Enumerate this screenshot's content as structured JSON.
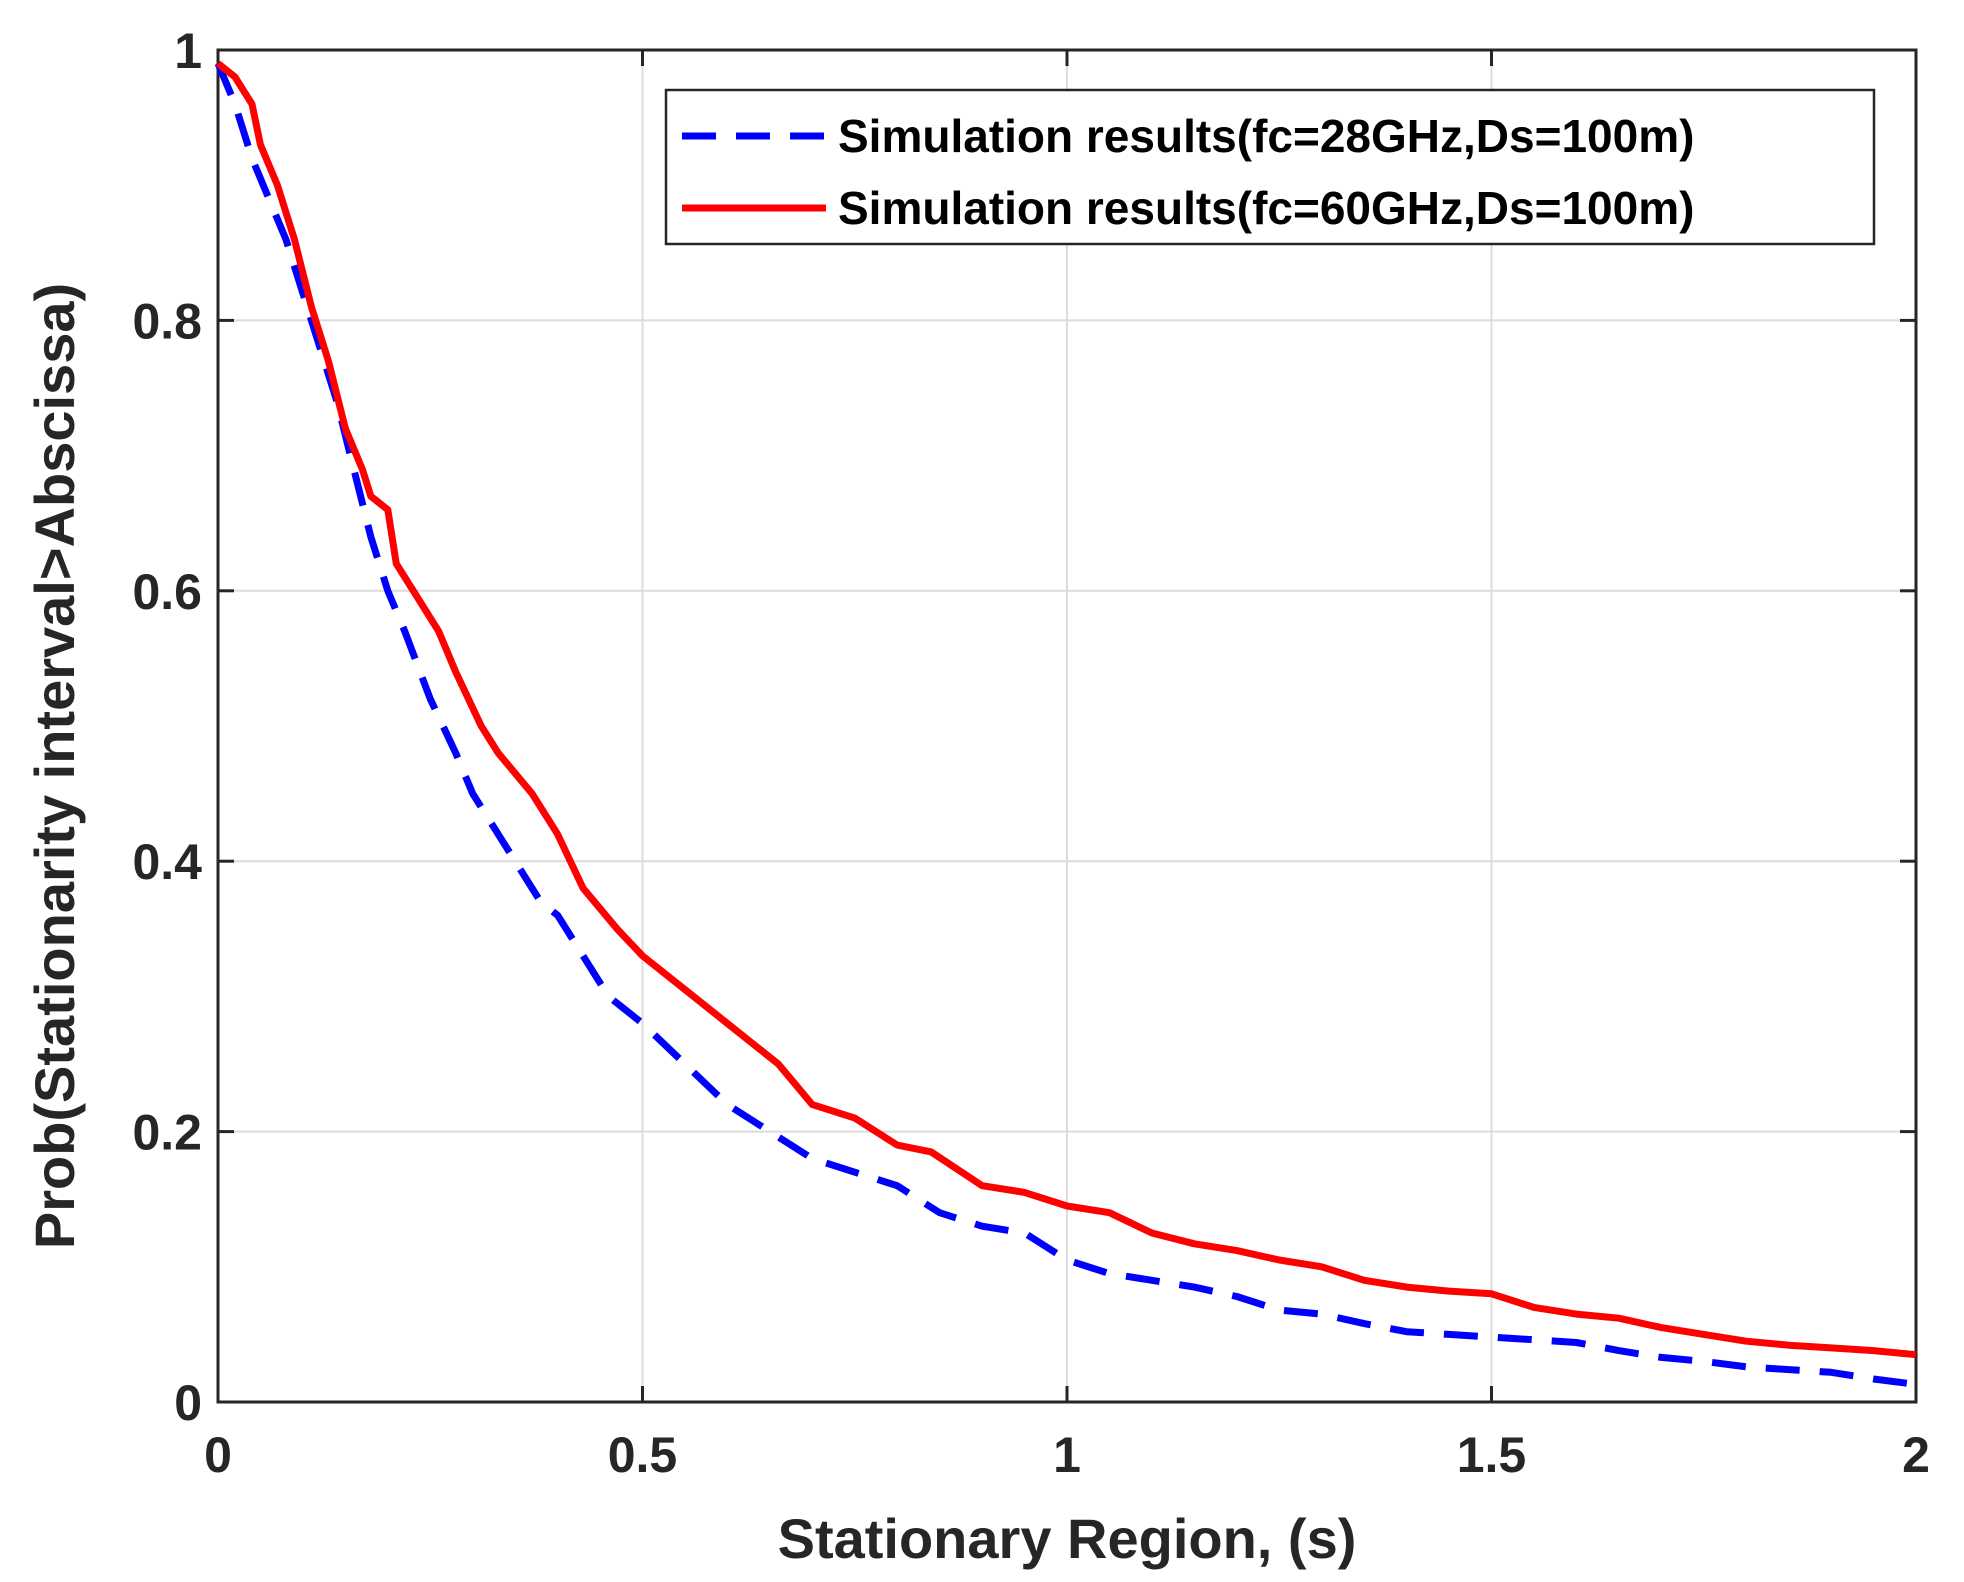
{
  "chart_data": {
    "type": "line",
    "title": "",
    "xlabel": "Stationary Region, (s)",
    "ylabel": "Prob(Stationarity interval>Abscissa)",
    "xlim": [
      0,
      2
    ],
    "ylim": [
      0,
      1
    ],
    "xticks": [
      0,
      0.5,
      1,
      1.5,
      2
    ],
    "xtick_labels": [
      "0",
      "0.5",
      "1",
      "1.5",
      "2"
    ],
    "yticks": [
      0,
      0.2,
      0.4,
      0.6,
      0.8,
      1
    ],
    "ytick_labels": [
      "0",
      "0.2",
      "0.4",
      "0.6",
      "0.8",
      "1"
    ],
    "grid": true,
    "legend_position": "top-right",
    "series": [
      {
        "name": "Simulation results(fc=28GHz,Ds=100m)",
        "style": "dashed",
        "color": "#0000ff",
        "x": [
          0,
          0.02,
          0.04,
          0.06,
          0.08,
          0.1,
          0.12,
          0.14,
          0.16,
          0.18,
          0.2,
          0.22,
          0.25,
          0.28,
          0.3,
          0.33,
          0.36,
          0.38,
          0.4,
          0.42,
          0.46,
          0.5,
          0.55,
          0.6,
          0.65,
          0.7,
          0.75,
          0.8,
          0.85,
          0.9,
          0.95,
          1.0,
          1.05,
          1.1,
          1.15,
          1.2,
          1.25,
          1.3,
          1.35,
          1.4,
          1.45,
          1.5,
          1.55,
          1.6,
          1.65,
          1.7,
          1.75,
          1.8,
          1.85,
          1.9,
          1.95,
          2.0
        ],
        "y": [
          0.99,
          0.96,
          0.92,
          0.89,
          0.86,
          0.82,
          0.78,
          0.74,
          0.69,
          0.64,
          0.6,
          0.57,
          0.52,
          0.48,
          0.45,
          0.42,
          0.39,
          0.37,
          0.36,
          0.34,
          0.3,
          0.28,
          0.25,
          0.22,
          0.2,
          0.18,
          0.17,
          0.16,
          0.14,
          0.13,
          0.125,
          0.105,
          0.095,
          0.09,
          0.085,
          0.078,
          0.068,
          0.065,
          0.058,
          0.052,
          0.05,
          0.048,
          0.046,
          0.044,
          0.038,
          0.033,
          0.03,
          0.026,
          0.024,
          0.022,
          0.017,
          0.013
        ]
      },
      {
        "name": "Simulation results(fc=60GHz,Ds=100m)",
        "style": "solid",
        "color": "#ff0000",
        "x": [
          0,
          0.02,
          0.04,
          0.05,
          0.07,
          0.09,
          0.11,
          0.13,
          0.15,
          0.17,
          0.18,
          0.2,
          0.21,
          0.23,
          0.26,
          0.28,
          0.31,
          0.33,
          0.37,
          0.4,
          0.43,
          0.47,
          0.5,
          0.54,
          0.58,
          0.62,
          0.66,
          0.7,
          0.75,
          0.8,
          0.84,
          0.9,
          0.95,
          1.0,
          1.05,
          1.1,
          1.15,
          1.2,
          1.25,
          1.3,
          1.35,
          1.4,
          1.45,
          1.5,
          1.55,
          1.6,
          1.65,
          1.7,
          1.75,
          1.8,
          1.85,
          1.9,
          1.95,
          2.0
        ],
        "y": [
          0.99,
          0.98,
          0.96,
          0.93,
          0.9,
          0.86,
          0.81,
          0.77,
          0.72,
          0.69,
          0.67,
          0.66,
          0.62,
          0.6,
          0.57,
          0.54,
          0.5,
          0.48,
          0.45,
          0.42,
          0.38,
          0.35,
          0.33,
          0.31,
          0.29,
          0.27,
          0.25,
          0.22,
          0.21,
          0.19,
          0.185,
          0.16,
          0.155,
          0.145,
          0.14,
          0.125,
          0.117,
          0.112,
          0.105,
          0.1,
          0.09,
          0.085,
          0.082,
          0.08,
          0.07,
          0.065,
          0.062,
          0.055,
          0.05,
          0.045,
          0.042,
          0.04,
          0.038,
          0.035
        ]
      }
    ]
  }
}
